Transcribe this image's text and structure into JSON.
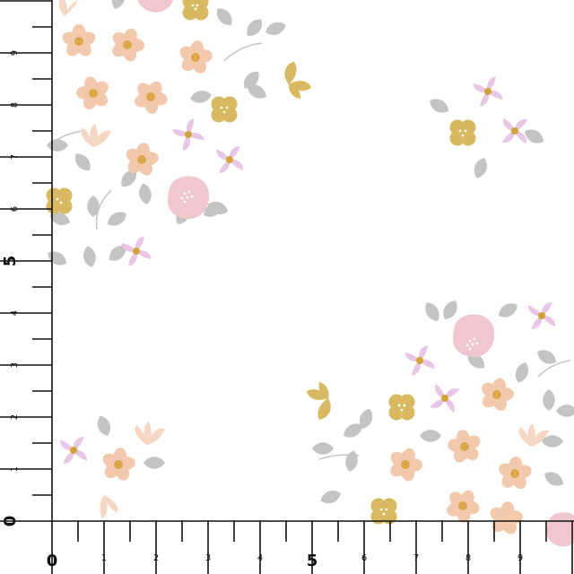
{
  "colors": {
    "peach": "#f3c9ae",
    "peach_light": "#f6d7c3",
    "gold": "#d8b860",
    "gold_dark": "#c79e3c",
    "lilac": "#e8c6e6",
    "lilac_center": "#d4a23a",
    "pink": "#f0c6cf",
    "leaf": "#c4c4c4",
    "center_orange": "#dca64a",
    "axis": "#111111"
  },
  "ruler": {
    "x_axis": {
      "labels": [
        "0",
        "1",
        "2",
        "3",
        "4",
        "5",
        "6",
        "7",
        "8",
        "9"
      ]
    },
    "y_axis": {
      "labels": [
        "0",
        "1",
        "2",
        "3",
        "4",
        "5",
        "6",
        "7",
        "8",
        "9"
      ]
    }
  },
  "pattern": {
    "motifs": [
      "peach-flower",
      "gold-flower",
      "lilac-pinwheel",
      "pink-rose",
      "gold-butterfly",
      "grey-leaf",
      "peach-tulip"
    ]
  }
}
